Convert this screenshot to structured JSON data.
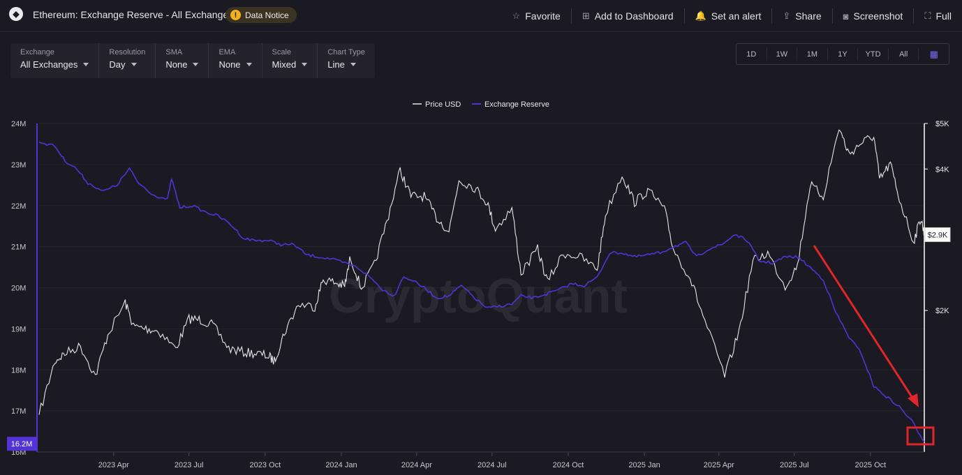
{
  "header": {
    "title": "Ethereum: Exchange Reserve - All Exchanges",
    "notice": "Data Notice",
    "notice_icon": "!",
    "actions": [
      {
        "label": "Favorite",
        "icon": "star-icon",
        "glyph": "☆"
      },
      {
        "label": "Add to Dashboard",
        "icon": "dashboard-icon",
        "glyph": "⊞"
      },
      {
        "label": "Set an alert",
        "icon": "bell-icon",
        "glyph": "🔔"
      },
      {
        "label": "Share",
        "icon": "share-icon",
        "glyph": "⇪"
      },
      {
        "label": "Screenshot",
        "icon": "camera-icon",
        "glyph": "◙"
      },
      {
        "label": "Full",
        "icon": "fullscreen-icon",
        "glyph": "⛶"
      }
    ]
  },
  "controls": [
    {
      "label": "Exchange",
      "value": "All Exchanges"
    },
    {
      "label": "Resolution",
      "value": "Day"
    },
    {
      "label": "SMA",
      "value": "None"
    },
    {
      "label": "EMA",
      "value": "None"
    },
    {
      "label": "Scale",
      "value": "Mixed"
    },
    {
      "label": "Chart Type",
      "value": "Line"
    }
  ],
  "ranges": [
    "1D",
    "1W",
    "1M",
    "1Y",
    "YTD",
    "All"
  ],
  "range_calendar_icon": "calendar-icon",
  "watermark": "CryptoQuant",
  "colors": {
    "price": "#e6e6ea",
    "reserve": "#5233d6",
    "annotation": "#e0252b",
    "background": "#1b1a22"
  },
  "chart_data": {
    "type": "line",
    "legend": [
      "Price USD",
      "Exchange Reserve"
    ],
    "legend_placement": "top-center",
    "x_ticks": [
      "2023 Apr",
      "2023 Jul",
      "2023 Oct",
      "2024 Jan",
      "2024 Apr",
      "2024 Jul",
      "2024 Oct",
      "2025 Jan",
      "2025 Apr",
      "2025 Jul",
      "2025 Oct"
    ],
    "x_range": [
      "2023-01-01",
      "2025-12-05"
    ],
    "left_axis": {
      "ticks": [
        "24M",
        "23M",
        "22M",
        "21M",
        "20M",
        "19M",
        "18M",
        "17M",
        "16M"
      ],
      "range": [
        16,
        24
      ],
      "unit": "M",
      "current": "16.2M"
    },
    "right_axis": {
      "ticks": [
        "$5K",
        "$4K",
        "$2K"
      ],
      "tick_values": [
        5000,
        4000,
        2000
      ],
      "range": [
        1000,
        5000
      ],
      "scale": "log",
      "current": "$2.9K"
    },
    "grid": true,
    "series": [
      {
        "name": "Exchange Reserve",
        "axis": "left",
        "points": [
          [
            "2023-01-01",
            23.55
          ],
          [
            "2023-01-20",
            23.45
          ],
          [
            "2023-02-01",
            23.1
          ],
          [
            "2023-02-15",
            22.9
          ],
          [
            "2023-03-01",
            22.55
          ],
          [
            "2023-03-20",
            22.35
          ],
          [
            "2023-04-05",
            22.5
          ],
          [
            "2023-04-20",
            22.9
          ],
          [
            "2023-05-01",
            22.55
          ],
          [
            "2023-05-20",
            22.25
          ],
          [
            "2023-06-05",
            22.15
          ],
          [
            "2023-06-10",
            22.65
          ],
          [
            "2023-06-20",
            21.95
          ],
          [
            "2023-07-05",
            22.0
          ],
          [
            "2023-07-20",
            21.85
          ],
          [
            "2023-08-05",
            21.75
          ],
          [
            "2023-08-20",
            21.55
          ],
          [
            "2023-09-05",
            21.2
          ],
          [
            "2023-09-20",
            21.15
          ],
          [
            "2023-10-05",
            21.15
          ],
          [
            "2023-10-20",
            21.05
          ],
          [
            "2023-11-05",
            21.05
          ],
          [
            "2023-11-20",
            20.8
          ],
          [
            "2023-12-05",
            20.75
          ],
          [
            "2023-12-20",
            20.7
          ],
          [
            "2024-01-05",
            20.6
          ],
          [
            "2024-01-20",
            20.5
          ],
          [
            "2024-02-05",
            20.25
          ],
          [
            "2024-02-20",
            19.95
          ],
          [
            "2024-03-05",
            19.8
          ],
          [
            "2024-03-15",
            20.25
          ],
          [
            "2024-03-25",
            20.2
          ],
          [
            "2024-04-10",
            20.0
          ],
          [
            "2024-04-25",
            19.75
          ],
          [
            "2024-05-10",
            19.8
          ],
          [
            "2024-05-25",
            20.05
          ],
          [
            "2024-06-10",
            19.75
          ],
          [
            "2024-06-25",
            19.5
          ],
          [
            "2024-07-10",
            19.55
          ],
          [
            "2024-07-25",
            19.6
          ],
          [
            "2024-08-05",
            19.8
          ],
          [
            "2024-08-20",
            19.75
          ],
          [
            "2024-09-05",
            19.85
          ],
          [
            "2024-09-20",
            19.95
          ],
          [
            "2024-10-05",
            20.1
          ],
          [
            "2024-10-20",
            20.05
          ],
          [
            "2024-11-05",
            20.25
          ],
          [
            "2024-11-20",
            20.85
          ],
          [
            "2024-12-05",
            20.85
          ],
          [
            "2024-12-20",
            20.75
          ],
          [
            "2025-01-05",
            20.8
          ],
          [
            "2025-01-20",
            20.85
          ],
          [
            "2025-02-05",
            21.0
          ],
          [
            "2025-02-20",
            21.1
          ],
          [
            "2025-03-05",
            20.75
          ],
          [
            "2025-03-20",
            20.95
          ],
          [
            "2025-04-05",
            21.05
          ],
          [
            "2025-04-20",
            21.3
          ],
          [
            "2025-05-05",
            21.15
          ],
          [
            "2025-05-20",
            20.65
          ],
          [
            "2025-06-05",
            20.6
          ],
          [
            "2025-06-20",
            20.75
          ],
          [
            "2025-07-05",
            20.75
          ],
          [
            "2025-07-20",
            20.5
          ],
          [
            "2025-08-05",
            20.2
          ],
          [
            "2025-08-20",
            19.4
          ],
          [
            "2025-09-05",
            18.8
          ],
          [
            "2025-09-20",
            18.4
          ],
          [
            "2025-10-05",
            17.6
          ],
          [
            "2025-10-20",
            17.35
          ],
          [
            "2025-11-05",
            17.1
          ],
          [
            "2025-11-20",
            16.75
          ],
          [
            "2025-12-05",
            16.25
          ]
        ]
      },
      {
        "name": "Price USD",
        "axis": "right",
        "points": [
          [
            "2023-01-01",
            1200
          ],
          [
            "2023-01-20",
            1560
          ],
          [
            "2023-02-01",
            1620
          ],
          [
            "2023-02-20",
            1680
          ],
          [
            "2023-03-10",
            1450
          ],
          [
            "2023-03-25",
            1780
          ],
          [
            "2023-04-15",
            2080
          ],
          [
            "2023-04-25",
            1850
          ],
          [
            "2023-05-10",
            1830
          ],
          [
            "2023-05-25",
            1810
          ],
          [
            "2023-06-15",
            1660
          ],
          [
            "2023-07-01",
            1920
          ],
          [
            "2023-07-15",
            1910
          ],
          [
            "2023-07-30",
            1860
          ],
          [
            "2023-08-18",
            1660
          ],
          [
            "2023-09-05",
            1630
          ],
          [
            "2023-09-20",
            1620
          ],
          [
            "2023-10-05",
            1600
          ],
          [
            "2023-10-12",
            1560
          ],
          [
            "2023-10-24",
            1790
          ],
          [
            "2023-11-10",
            2060
          ],
          [
            "2023-11-30",
            2040
          ],
          [
            "2023-12-10",
            2330
          ],
          [
            "2023-12-25",
            2290
          ],
          [
            "2024-01-05",
            2250
          ],
          [
            "2024-01-12",
            2600
          ],
          [
            "2024-01-25",
            2230
          ],
          [
            "2024-02-10",
            2500
          ],
          [
            "2024-02-25",
            3100
          ],
          [
            "2024-03-12",
            3980
          ],
          [
            "2024-03-25",
            3500
          ],
          [
            "2024-04-10",
            3500
          ],
          [
            "2024-04-25",
            3150
          ],
          [
            "2024-05-10",
            2950
          ],
          [
            "2024-05-22",
            3800
          ],
          [
            "2024-06-10",
            3650
          ],
          [
            "2024-06-25",
            3400
          ],
          [
            "2024-07-05",
            2980
          ],
          [
            "2024-07-25",
            3300
          ],
          [
            "2024-08-05",
            2400
          ],
          [
            "2024-08-25",
            2700
          ],
          [
            "2024-09-06",
            2300
          ],
          [
            "2024-09-25",
            2650
          ],
          [
            "2024-10-15",
            2600
          ],
          [
            "2024-11-05",
            2450
          ],
          [
            "2024-11-15",
            3200
          ],
          [
            "2024-12-05",
            3900
          ],
          [
            "2024-12-20",
            3400
          ],
          [
            "2025-01-05",
            3600
          ],
          [
            "2025-01-25",
            3300
          ],
          [
            "2025-02-05",
            2700
          ],
          [
            "2025-02-25",
            2350
          ],
          [
            "2025-03-15",
            1900
          ],
          [
            "2025-04-08",
            1450
          ],
          [
            "2025-04-25",
            1800
          ],
          [
            "2025-05-12",
            2550
          ],
          [
            "2025-05-30",
            2650
          ],
          [
            "2025-06-20",
            2250
          ],
          [
            "2025-07-05",
            2500
          ],
          [
            "2025-07-20",
            3700
          ],
          [
            "2025-08-05",
            3500
          ],
          [
            "2025-08-24",
            4900
          ],
          [
            "2025-09-05",
            4300
          ],
          [
            "2025-09-20",
            4550
          ],
          [
            "2025-10-05",
            4700
          ],
          [
            "2025-10-12",
            3800
          ],
          [
            "2025-10-25",
            4100
          ],
          [
            "2025-11-05",
            3450
          ],
          [
            "2025-11-22",
            2800
          ],
          [
            "2025-12-01",
            3150
          ],
          [
            "2025-12-05",
            2900
          ]
        ]
      }
    ]
  }
}
